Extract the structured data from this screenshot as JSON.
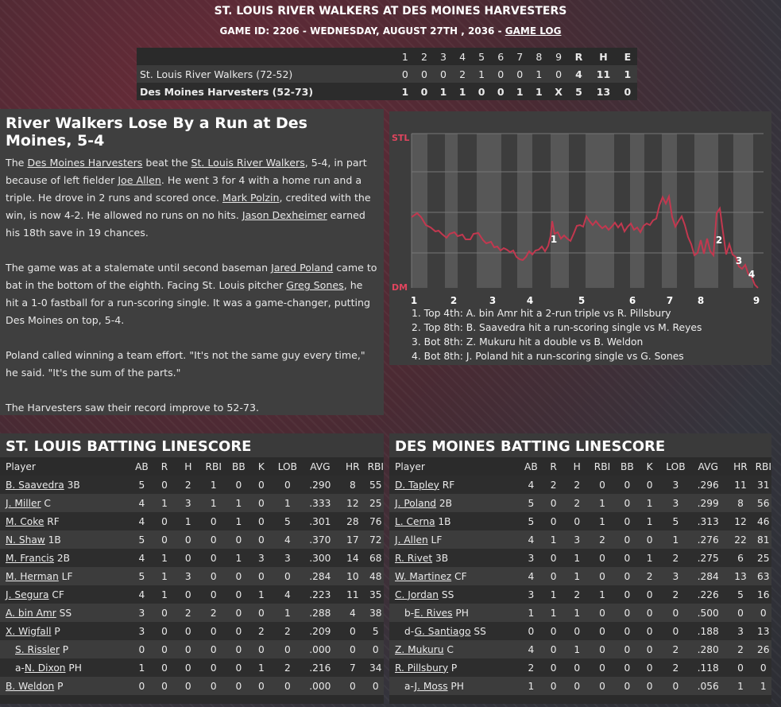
{
  "header": {
    "title": "ST. LOUIS RIVER WALKERS AT DES MOINES HARVESTERS",
    "subtitle_prefix": "GAME ID: 2206 - WEDNESDAY, AUGUST 27TH , 2036 - ",
    "game_log_link": "GAME LOG"
  },
  "linescore": {
    "innings": [
      "1",
      "2",
      "3",
      "4",
      "5",
      "6",
      "7",
      "8",
      "9"
    ],
    "totals_headers": [
      "R",
      "H",
      "E"
    ],
    "teams": [
      {
        "name": "St. Louis River Walkers (72-52)",
        "innings": [
          "0",
          "0",
          "0",
          "2",
          "1",
          "0",
          "0",
          "1",
          "0"
        ],
        "totals": [
          "4",
          "11",
          "1"
        ]
      },
      {
        "name": "Des Moines Harvesters (52-73)",
        "innings": [
          "1",
          "0",
          "1",
          "1",
          "0",
          "0",
          "1",
          "1",
          "X"
        ],
        "totals": [
          "5",
          "13",
          "0"
        ]
      }
    ]
  },
  "story": {
    "headline": "River Walkers Lose By a Run at Des Moines, 5-4",
    "p1": [
      {
        "t": "The "
      },
      {
        "t": "Des Moines Harvesters",
        "link": true
      },
      {
        "t": " beat the "
      },
      {
        "t": "St. Louis River Walkers",
        "link": true
      },
      {
        "t": ", 5-4, in part because of left fielder "
      },
      {
        "t": "Joe Allen",
        "link": true
      },
      {
        "t": ". He went 3 for 4 with a home run and a triple. He drove in 2 runs and scored once. "
      },
      {
        "t": "Mark Polzin",
        "link": true
      },
      {
        "t": ", credited with the win, is now 4-2. He allowed no runs on no hits. "
      },
      {
        "t": "Jason Dexheimer",
        "link": true
      },
      {
        "t": " earned his 18th save in 19 chances."
      }
    ],
    "p2": [
      {
        "t": "The game was at a stalemate until second baseman "
      },
      {
        "t": "Jared Poland",
        "link": true
      },
      {
        "t": " came to bat in the bottom of the eighth. Facing St. Louis pitcher "
      },
      {
        "t": "Greg Sones",
        "link": true
      },
      {
        "t": ", he hit a 1-0 fastball for a run-scoring single. It was a game-changer, putting Des Moines on top, 5-4."
      }
    ],
    "p3": "Poland called winning a team effort. \"It's not the same guy every time,\" he said. \"It's the sum of the parts.\"",
    "p4": "The Harvesters saw their record improve to 52-73."
  },
  "win_probability": {
    "top_label": "STL",
    "bottom_label": "DM",
    "inning_labels": [
      "1",
      "2",
      "3",
      "4",
      "5",
      "6",
      "7",
      "8",
      "9"
    ],
    "marker_labels": [
      "1",
      "2",
      "3",
      "4"
    ],
    "events": [
      "1. Top 4th: A. bin Amr hit a 2-run triple vs R. Pillsbury",
      "2. Top 8th: B. Saavedra hit a run-scoring single vs M. Reyes",
      "3. Bot 8th: Z. Mukuru hit a double vs B. Weldon",
      "4. Bot 8th: J. Poland hit a run-scoring single vs G. Sones"
    ],
    "line_color": "#c2384f"
  },
  "stl_batting": {
    "title": "ST. LOUIS BATTING LINESCORE",
    "columns": [
      "Player",
      "AB",
      "R",
      "H",
      "RBI",
      "BB",
      "K",
      "LOB",
      "AVG",
      "HR",
      "RBI"
    ],
    "rows": [
      {
        "prefix": "",
        "name": "B. Saavedra",
        "pos": "3B",
        "stats": [
          "5",
          "0",
          "2",
          "1",
          "0",
          "0",
          "0",
          ".290",
          "8",
          "55"
        ]
      },
      {
        "prefix": "",
        "name": "J. Miller",
        "pos": "C",
        "stats": [
          "4",
          "1",
          "3",
          "1",
          "1",
          "0",
          "1",
          ".333",
          "12",
          "25"
        ]
      },
      {
        "prefix": "",
        "name": "M. Coke",
        "pos": "RF",
        "stats": [
          "4",
          "0",
          "1",
          "0",
          "1",
          "0",
          "5",
          ".301",
          "28",
          "76"
        ]
      },
      {
        "prefix": "",
        "name": "N. Shaw",
        "pos": "1B",
        "stats": [
          "5",
          "0",
          "0",
          "0",
          "0",
          "0",
          "4",
          ".370",
          "17",
          "72"
        ]
      },
      {
        "prefix": "",
        "name": "M. Francis",
        "pos": "2B",
        "stats": [
          "4",
          "1",
          "0",
          "0",
          "1",
          "3",
          "3",
          ".300",
          "14",
          "68"
        ]
      },
      {
        "prefix": "",
        "name": "M. Herman",
        "pos": "LF",
        "stats": [
          "5",
          "1",
          "3",
          "0",
          "0",
          "0",
          "0",
          ".284",
          "10",
          "48"
        ]
      },
      {
        "prefix": "",
        "name": "J. Segura",
        "pos": "CF",
        "stats": [
          "4",
          "1",
          "0",
          "0",
          "0",
          "1",
          "4",
          ".223",
          "11",
          "35"
        ]
      },
      {
        "prefix": "",
        "name": "A. bin Amr",
        "pos": "SS",
        "stats": [
          "3",
          "0",
          "2",
          "2",
          "0",
          "0",
          "1",
          ".288",
          "4",
          "38"
        ]
      },
      {
        "prefix": "",
        "name": "X. Wigfall",
        "pos": "P",
        "stats": [
          "3",
          "0",
          "0",
          "0",
          "0",
          "2",
          "2",
          ".209",
          "0",
          "5"
        ]
      },
      {
        "prefix": "",
        "name": "S. Rissler",
        "pos": "P",
        "sub": true,
        "stats": [
          "0",
          "0",
          "0",
          "0",
          "0",
          "0",
          "0",
          ".000",
          "0",
          "0"
        ]
      },
      {
        "prefix": "a-",
        "name": "N. Dixon",
        "pos": "PH",
        "sub": true,
        "stats": [
          "1",
          "0",
          "0",
          "0",
          "0",
          "1",
          "2",
          ".216",
          "7",
          "34"
        ]
      },
      {
        "prefix": "",
        "name": "B. Weldon",
        "pos": "P",
        "stats": [
          "0",
          "0",
          "0",
          "0",
          "0",
          "0",
          "0",
          ".000",
          "0",
          "0"
        ]
      }
    ]
  },
  "dm_batting": {
    "title": "DES MOINES BATTING LINESCORE",
    "columns": [
      "Player",
      "AB",
      "R",
      "H",
      "RBI",
      "BB",
      "K",
      "LOB",
      "AVG",
      "HR",
      "RBI"
    ],
    "rows": [
      {
        "prefix": "",
        "name": "D. Tapley",
        "pos": "RF",
        "stats": [
          "4",
          "2",
          "2",
          "0",
          "0",
          "0",
          "3",
          ".296",
          "11",
          "31"
        ]
      },
      {
        "prefix": "",
        "name": "J. Poland",
        "pos": "2B",
        "stats": [
          "5",
          "0",
          "2",
          "1",
          "0",
          "1",
          "3",
          ".299",
          "8",
          "56"
        ]
      },
      {
        "prefix": "",
        "name": "L. Cerna",
        "pos": "1B",
        "stats": [
          "5",
          "0",
          "0",
          "1",
          "0",
          "1",
          "5",
          ".313",
          "12",
          "46"
        ]
      },
      {
        "prefix": "",
        "name": "J. Allen",
        "pos": "LF",
        "stats": [
          "4",
          "1",
          "3",
          "2",
          "0",
          "0",
          "1",
          ".276",
          "22",
          "81"
        ]
      },
      {
        "prefix": "",
        "name": "R. Rivet",
        "pos": "3B",
        "stats": [
          "3",
          "0",
          "1",
          "0",
          "0",
          "1",
          "2",
          ".275",
          "6",
          "25"
        ]
      },
      {
        "prefix": "",
        "name": "W. Martinez",
        "pos": "CF",
        "stats": [
          "4",
          "0",
          "1",
          "0",
          "0",
          "2",
          "3",
          ".284",
          "13",
          "63"
        ]
      },
      {
        "prefix": "",
        "name": "C. Jordan",
        "pos": "SS",
        "stats": [
          "3",
          "1",
          "2",
          "1",
          "0",
          "0",
          "2",
          ".226",
          "5",
          "16"
        ]
      },
      {
        "prefix": "b-",
        "name": "E. Rives",
        "pos": "PH",
        "sub": true,
        "stats": [
          "1",
          "1",
          "1",
          "0",
          "0",
          "0",
          "0",
          ".500",
          "0",
          "0"
        ]
      },
      {
        "prefix": "d-",
        "name": "G. Santiago",
        "pos": "SS",
        "sub": true,
        "stats": [
          "0",
          "0",
          "0",
          "0",
          "0",
          "0",
          "0",
          ".188",
          "3",
          "13"
        ]
      },
      {
        "prefix": "",
        "name": "Z. Mukuru",
        "pos": "C",
        "stats": [
          "4",
          "0",
          "1",
          "0",
          "0",
          "0",
          "2",
          ".280",
          "2",
          "26"
        ]
      },
      {
        "prefix": "",
        "name": "R. Pillsbury",
        "pos": "P",
        "stats": [
          "2",
          "0",
          "0",
          "0",
          "0",
          "0",
          "2",
          ".118",
          "0",
          "0"
        ]
      },
      {
        "prefix": "a-",
        "name": "J. Moss",
        "pos": "PH",
        "sub": true,
        "stats": [
          "1",
          "0",
          "0",
          "0",
          "0",
          "0",
          "0",
          ".056",
          "1",
          "1"
        ]
      }
    ]
  }
}
